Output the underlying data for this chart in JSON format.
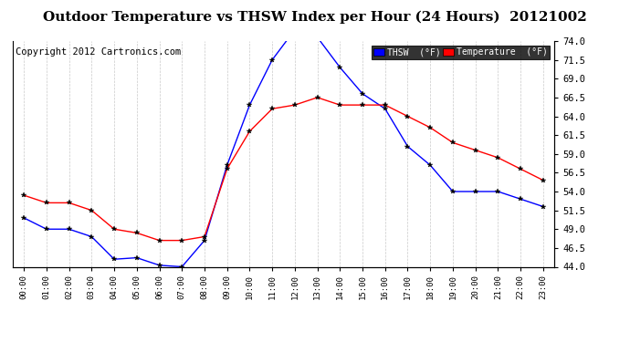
{
  "title": "Outdoor Temperature vs THSW Index per Hour (24 Hours)  20121002",
  "copyright": "Copyright 2012 Cartronics.com",
  "hours": [
    "00:00",
    "01:00",
    "02:00",
    "03:00",
    "04:00",
    "05:00",
    "06:00",
    "07:00",
    "08:00",
    "09:00",
    "10:00",
    "11:00",
    "12:00",
    "13:00",
    "14:00",
    "15:00",
    "16:00",
    "17:00",
    "18:00",
    "19:00",
    "20:00",
    "21:00",
    "22:00",
    "23:00"
  ],
  "thsw": [
    50.5,
    49.0,
    49.0,
    48.0,
    45.0,
    45.2,
    44.2,
    44.0,
    47.5,
    57.5,
    65.5,
    71.5,
    75.5,
    74.5,
    70.5,
    67.0,
    65.0,
    60.0,
    57.5,
    54.0,
    54.0,
    54.0,
    53.0,
    52.0
  ],
  "temperature": [
    53.5,
    52.5,
    52.5,
    51.5,
    49.0,
    48.5,
    47.5,
    47.5,
    48.0,
    57.0,
    62.0,
    65.0,
    65.5,
    66.5,
    65.5,
    65.5,
    65.5,
    64.0,
    62.5,
    60.5,
    59.5,
    58.5,
    57.0,
    55.5
  ],
  "ylim": [
    44.0,
    74.0
  ],
  "yticks": [
    44.0,
    46.5,
    49.0,
    51.5,
    54.0,
    56.5,
    59.0,
    61.5,
    64.0,
    66.5,
    69.0,
    71.5,
    74.0
  ],
  "thsw_color": "#0000ff",
  "temp_color": "#ff0000",
  "bg_color": "#ffffff",
  "grid_color": "#bbbbbb",
  "title_fontsize": 11,
  "copyright_fontsize": 7.5,
  "legend_thsw_label": "THSW  (°F)",
  "legend_temp_label": "Temperature  (°F)"
}
